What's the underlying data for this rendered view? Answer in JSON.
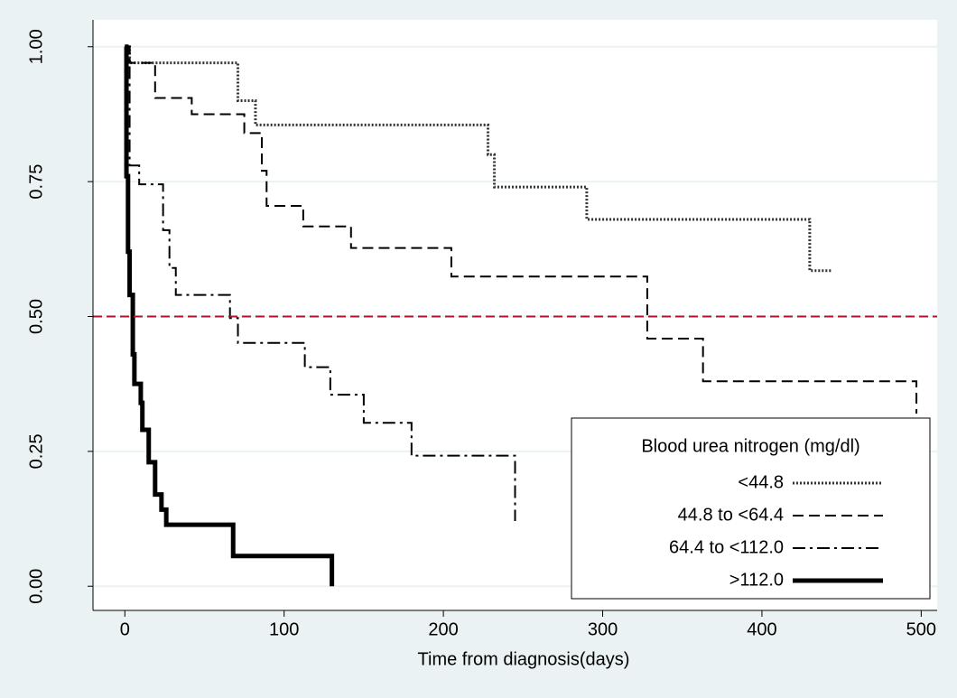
{
  "chart_data": {
    "type": "step",
    "xlabel": "Time from diagnosis(days)",
    "xlim": [
      -20,
      510
    ],
    "xticks": [
      0,
      100,
      200,
      300,
      400,
      500
    ],
    "ylim": [
      -0.0448,
      1.0498
    ],
    "yticks": [
      {
        "value": 0,
        "label": "0.00"
      },
      0.25,
      {
        "value": 0.5,
        "label": "0.50"
      },
      0.75,
      {
        "value": 1,
        "label": "1.00"
      }
    ],
    "grid": true,
    "reference_line": {
      "y": 0.5,
      "color": "#b2102f"
    },
    "legend": {
      "title": "Blood urea nitrogen (mg/dl)",
      "position": "lower right"
    },
    "series": [
      {
        "name": "<44.8",
        "color": "#333333",
        "linestyle": "dotted",
        "linewidth": 3,
        "x": [
          0,
          3,
          71,
          82,
          228,
          232,
          290,
          430,
          444
        ],
        "values": [
          1,
          0.97,
          0.9,
          0.855,
          0.8,
          0.74,
          0.68,
          0.585,
          0.585
        ]
      },
      {
        "name": "44.8 to <64.4",
        "color": "#000000",
        "linestyle": "dashed",
        "linewidth": 2,
        "x": [
          0,
          3,
          19,
          42,
          75,
          86,
          89,
          112,
          142,
          205,
          328,
          363,
          497
        ],
        "values": [
          1,
          0.97,
          0.905,
          0.875,
          0.84,
          0.77,
          0.705,
          0.667,
          0.627,
          0.574,
          0.459,
          0.38,
          0.32
        ]
      },
      {
        "name": "64.4 to <112.0",
        "color": "#000000",
        "linestyle": "dashdot",
        "linewidth": 2,
        "x": [
          0,
          3,
          9,
          24,
          28,
          32,
          66,
          71,
          113,
          129,
          150,
          180,
          245
        ],
        "values": [
          1,
          0.78,
          0.745,
          0.66,
          0.59,
          0.54,
          0.497,
          0.451,
          0.406,
          0.355,
          0.303,
          0.242,
          0.121
        ]
      },
      {
        "name": ">112.0",
        "color": "#000000",
        "linestyle": "solid",
        "linewidth": 5,
        "x": [
          0,
          1,
          2,
          3,
          5,
          6,
          10,
          11,
          15,
          19,
          23,
          26,
          68,
          130
        ],
        "values": [
          1,
          0.76,
          0.62,
          0.54,
          0.43,
          0.375,
          0.34,
          0.29,
          0.23,
          0.17,
          0.142,
          0.114,
          0.056,
          0
        ]
      }
    ]
  }
}
